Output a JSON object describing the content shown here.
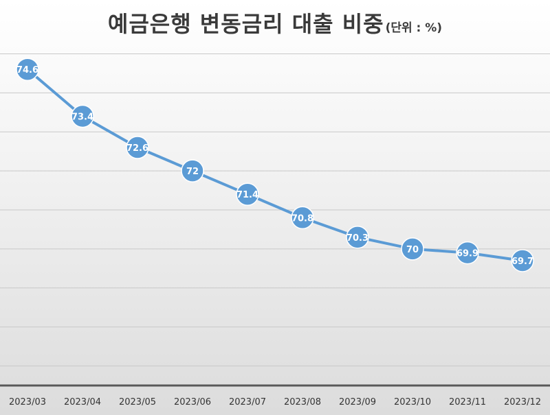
{
  "chart_data": {
    "type": "line",
    "title": "예금은행 변동금리 대출 비중",
    "unit_note": "(단위 : %)",
    "categories": [
      "2023/03",
      "2023/04",
      "2023/05",
      "2023/06",
      "2023/07",
      "2023/08",
      "2023/09",
      "2023/10",
      "2023/11",
      "2023/12"
    ],
    "series": [
      {
        "values": [
          74.6,
          73.4,
          72.6,
          72,
          71.4,
          70.8,
          70.3,
          70,
          69.9,
          69.7
        ]
      }
    ],
    "ylim": [
      66.5,
      75.5
    ],
    "y_grid_step": 1,
    "grid": true,
    "legend": "none",
    "data_labels": true,
    "colors": {
      "line": "#5b9bd5",
      "marker": "#5b9bd5",
      "grid": "#c8c8c8",
      "axis": "#595959"
    }
  }
}
